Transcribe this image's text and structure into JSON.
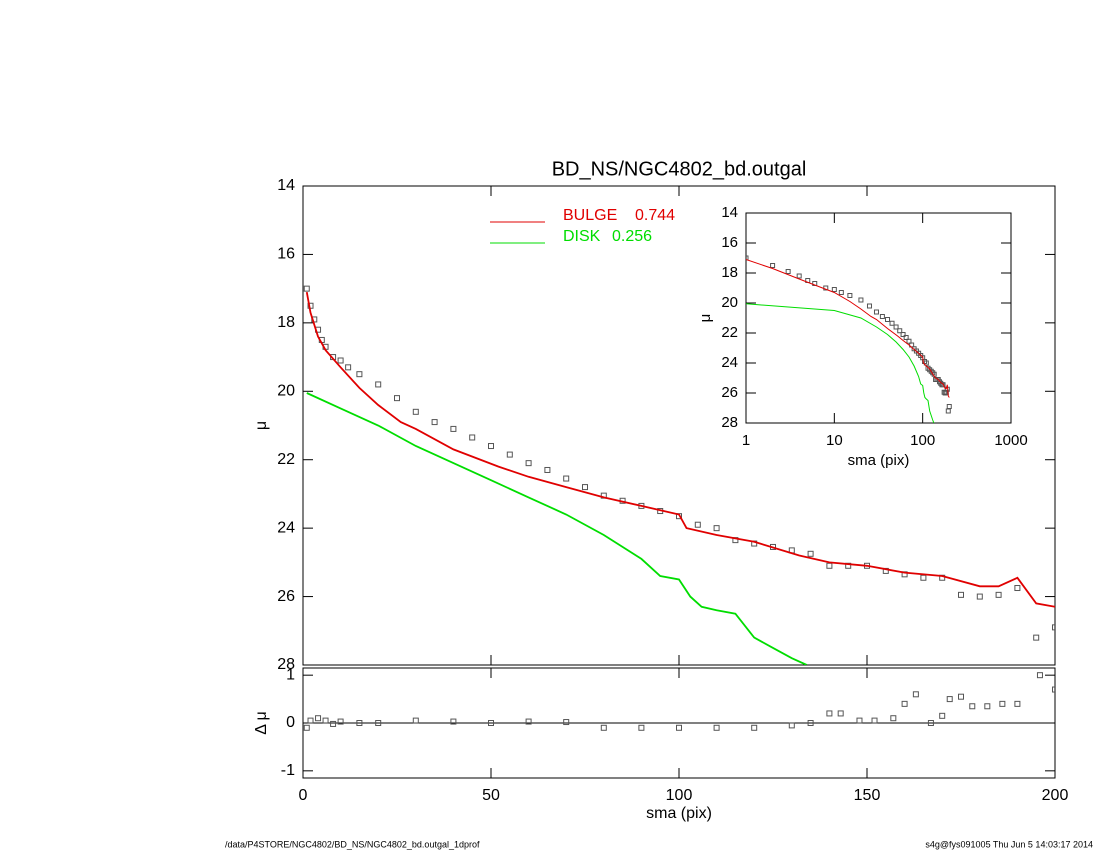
{
  "chart_data": [
    {
      "type": "line",
      "title": "BD_NS/NGC4802_bd.outgal",
      "ylabel": "μ",
      "xlim": [
        0,
        200
      ],
      "xticks": [
        0,
        50,
        100,
        150,
        200
      ],
      "xtick_labels": false,
      "ylim": [
        28,
        14
      ],
      "yticks": [
        14,
        16,
        18,
        20,
        22,
        24,
        26,
        28
      ],
      "series": [
        {
          "style": "points",
          "color": "#555555",
          "x": [
            1,
            2,
            3,
            4,
            5,
            6,
            8,
            10,
            12,
            15,
            20,
            25,
            30,
            35,
            40,
            45,
            50,
            55,
            60,
            65,
            70,
            75,
            80,
            85,
            90,
            95,
            100,
            105,
            110,
            115,
            120,
            125,
            130,
            135,
            140,
            145,
            150,
            155,
            160,
            165,
            170,
            175,
            180,
            185,
            190,
            195,
            200
          ],
          "values": [
            17.0,
            17.5,
            17.9,
            18.2,
            18.5,
            18.7,
            19.0,
            19.1,
            19.3,
            19.5,
            19.8,
            20.2,
            20.6,
            20.9,
            21.1,
            21.35,
            21.6,
            21.85,
            22.1,
            22.3,
            22.55,
            22.8,
            23.05,
            23.2,
            23.35,
            23.5,
            23.65,
            23.9,
            24.0,
            24.35,
            24.45,
            24.55,
            24.65,
            24.75,
            25.1,
            25.1,
            25.1,
            25.25,
            25.35,
            25.45,
            25.45,
            25.95,
            26.0,
            25.95,
            25.75,
            27.2,
            26.9
          ]
        },
        {
          "name": "BULGE",
          "fraction": 0.744,
          "style": "line",
          "color": "#e00000",
          "x": [
            1,
            2,
            4,
            6,
            10,
            15,
            20,
            26,
            30,
            40,
            52,
            60,
            70,
            80,
            90,
            100,
            102,
            110,
            120,
            132,
            140,
            150,
            160,
            170,
            180,
            185,
            190,
            195,
            200
          ],
          "values": [
            17.1,
            17.7,
            18.4,
            18.8,
            19.3,
            19.9,
            20.4,
            20.9,
            21.1,
            21.7,
            22.2,
            22.5,
            22.8,
            23.1,
            23.35,
            23.6,
            24.0,
            24.2,
            24.4,
            24.8,
            25.0,
            25.1,
            25.3,
            25.4,
            25.7,
            25.7,
            25.45,
            26.2,
            26.3
          ]
        },
        {
          "name": "DISK",
          "fraction": 0.256,
          "style": "line",
          "color": "#00dd00",
          "x": [
            1,
            10,
            20,
            30,
            40,
            50,
            60,
            70,
            80,
            90,
            95,
            100,
            103,
            106,
            110,
            115,
            120,
            125,
            130,
            134
          ],
          "values": [
            20.05,
            20.5,
            21.0,
            21.6,
            22.1,
            22.6,
            23.1,
            23.6,
            24.2,
            24.9,
            25.4,
            25.5,
            26.0,
            26.3,
            26.4,
            26.5,
            27.2,
            27.5,
            27.8,
            28.0
          ]
        }
      ]
    },
    {
      "type": "line",
      "xscale": "log",
      "ylabel": "μ",
      "xlabel": "sma (pix)",
      "xlim": [
        1,
        1000
      ],
      "xticks": [
        1,
        10,
        100,
        1000
      ],
      "ylim": [
        28,
        14
      ],
      "yticks": [
        14,
        16,
        18,
        20,
        22,
        24,
        26,
        28
      ]
    },
    {
      "type": "scatter",
      "ylabel": "Δ μ",
      "xlabel": "sma (pix)",
      "xlim": [
        0,
        200
      ],
      "xticks": [
        0,
        50,
        100,
        150,
        200
      ],
      "ylim": [
        -1.15,
        1.15
      ],
      "yticks": [
        -1,
        0,
        1
      ],
      "series": [
        {
          "style": "points",
          "color": "#555555",
          "x": [
            1,
            2,
            4,
            6,
            8,
            10,
            15,
            20,
            30,
            40,
            50,
            60,
            70,
            80,
            90,
            100,
            110,
            120,
            130,
            135,
            140,
            143,
            148,
            152,
            157,
            160,
            163,
            167,
            170,
            172,
            175,
            178,
            182,
            186,
            190,
            196,
            200
          ],
          "values": [
            -0.1,
            0.05,
            0.1,
            0.05,
            -0.02,
            0.03,
            0.0,
            0.0,
            0.05,
            0.03,
            0.0,
            0.03,
            0.02,
            -0.1,
            -0.1,
            -0.1,
            -0.1,
            -0.1,
            -0.05,
            0.0,
            0.2,
            0.2,
            0.05,
            0.05,
            0.1,
            0.4,
            0.6,
            0.0,
            0.15,
            0.5,
            0.55,
            0.35,
            0.35,
            0.4,
            0.4,
            1.0,
            0.7
          ]
        }
      ]
    }
  ],
  "footer": {
    "left": "/data/P4STORE/NGC4802/BD_NS/NGC4802_bd.outgal_1dprof",
    "right": "s4g@fys091005  Thu Jun  5 14:03:17 2014"
  }
}
